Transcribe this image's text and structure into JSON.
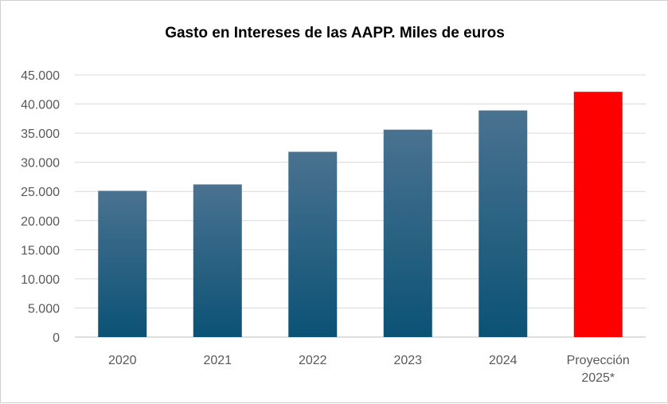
{
  "chart_data": {
    "type": "bar",
    "title": "Gasto en Intereses de las AAPP. Miles de euros",
    "categories": [
      [
        "2020"
      ],
      [
        "2021"
      ],
      [
        "2022"
      ],
      [
        "2023"
      ],
      [
        "2024"
      ],
      [
        "Proyección",
        "2025*"
      ]
    ],
    "values": [
      25100,
      26200,
      31800,
      35600,
      38900,
      42100
    ],
    "highlight_index": 5,
    "ylim": [
      0,
      45000
    ],
    "yticks": [
      {
        "value": 0,
        "label": "0"
      },
      {
        "value": 5000,
        "label": "5.000"
      },
      {
        "value": 10000,
        "label": "10.000"
      },
      {
        "value": 15000,
        "label": "15.000"
      },
      {
        "value": 20000,
        "label": "20.000"
      },
      {
        "value": 25000,
        "label": "25.000"
      },
      {
        "value": 30000,
        "label": "30.000"
      },
      {
        "value": 35000,
        "label": "35.000"
      },
      {
        "value": 40000,
        "label": "40.000"
      },
      {
        "value": 45000,
        "label": "45.000"
      }
    ],
    "grid": true,
    "colors": {
      "bar_top": "#4a7290",
      "bar_bottom": "#0b5275",
      "highlight": "#ff0000",
      "grid": "#d9d9d9",
      "axis": "#bfbfbf",
      "tick_text": "#595959"
    }
  }
}
